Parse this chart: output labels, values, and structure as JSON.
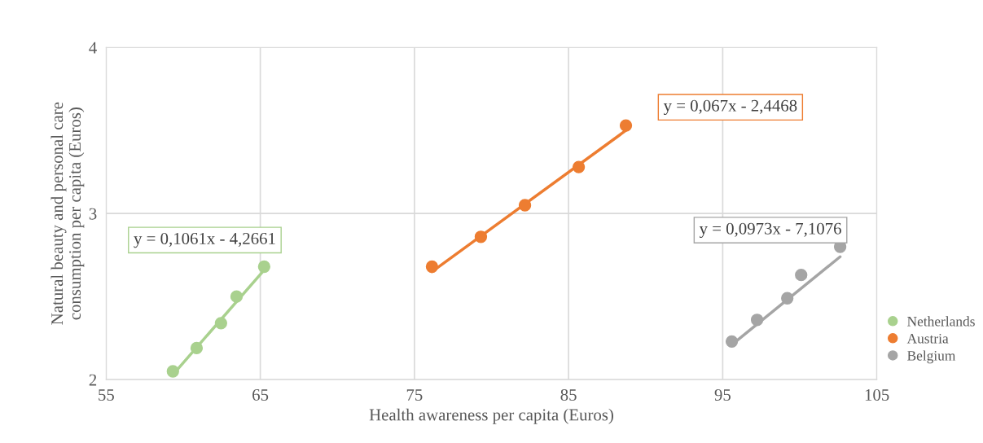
{
  "chart_data": {
    "type": "scatter",
    "xlabel": "Health awareness per capita (Euros)",
    "ylabel": "Natural beauty and personal care consumption per capita (Euros)",
    "xlim": [
      55,
      105
    ],
    "xticks": [
      55,
      65,
      75,
      85,
      95,
      105
    ],
    "ylim": [
      2,
      4
    ],
    "yticks": [
      2,
      3,
      4
    ],
    "grid": true,
    "legend": "right",
    "series": [
      {
        "name": "Netherlands",
        "color": "#a9d18e",
        "x": [
          59.33,
          60.87,
          62.45,
          63.46,
          65.25
        ],
        "values": [
          2.05,
          2.19,
          2.34,
          2.5,
          2.68
        ],
        "marker": "circle"
      },
      {
        "name": "Austria",
        "color": "#ed7d31",
        "x": [
          76.14,
          79.31,
          82.17,
          85.66,
          88.72
        ],
        "values": [
          2.68,
          2.86,
          3.05,
          3.28,
          3.53
        ],
        "marker": "circle"
      },
      {
        "name": "Belgium",
        "color": "#a5a5a5",
        "x": [
          95.59,
          97.23,
          99.19,
          100.09,
          102.62
        ],
        "values": [
          2.23,
          2.36,
          2.49,
          2.63,
          2.8
        ],
        "marker": "circle"
      },
      {
        "type": "line",
        "color": "#a9d18e",
        "x": [
          59.33,
          65.25
        ],
        "values": [
          2.03,
          2.66
        ]
      },
      {
        "type": "line",
        "color": "#ed7d31",
        "x": [
          76.14,
          88.72
        ],
        "values": [
          2.65,
          3.5
        ]
      },
      {
        "type": "line",
        "color": "#a5a5a5",
        "x": [
          95.59,
          102.62
        ],
        "values": [
          2.21,
          2.74
        ]
      }
    ],
    "annotations": [
      "y = 0,1061x - 4,2661",
      "y = 0,067x - 2,4468",
      "y = 0,0973x - 7,1076"
    ]
  }
}
